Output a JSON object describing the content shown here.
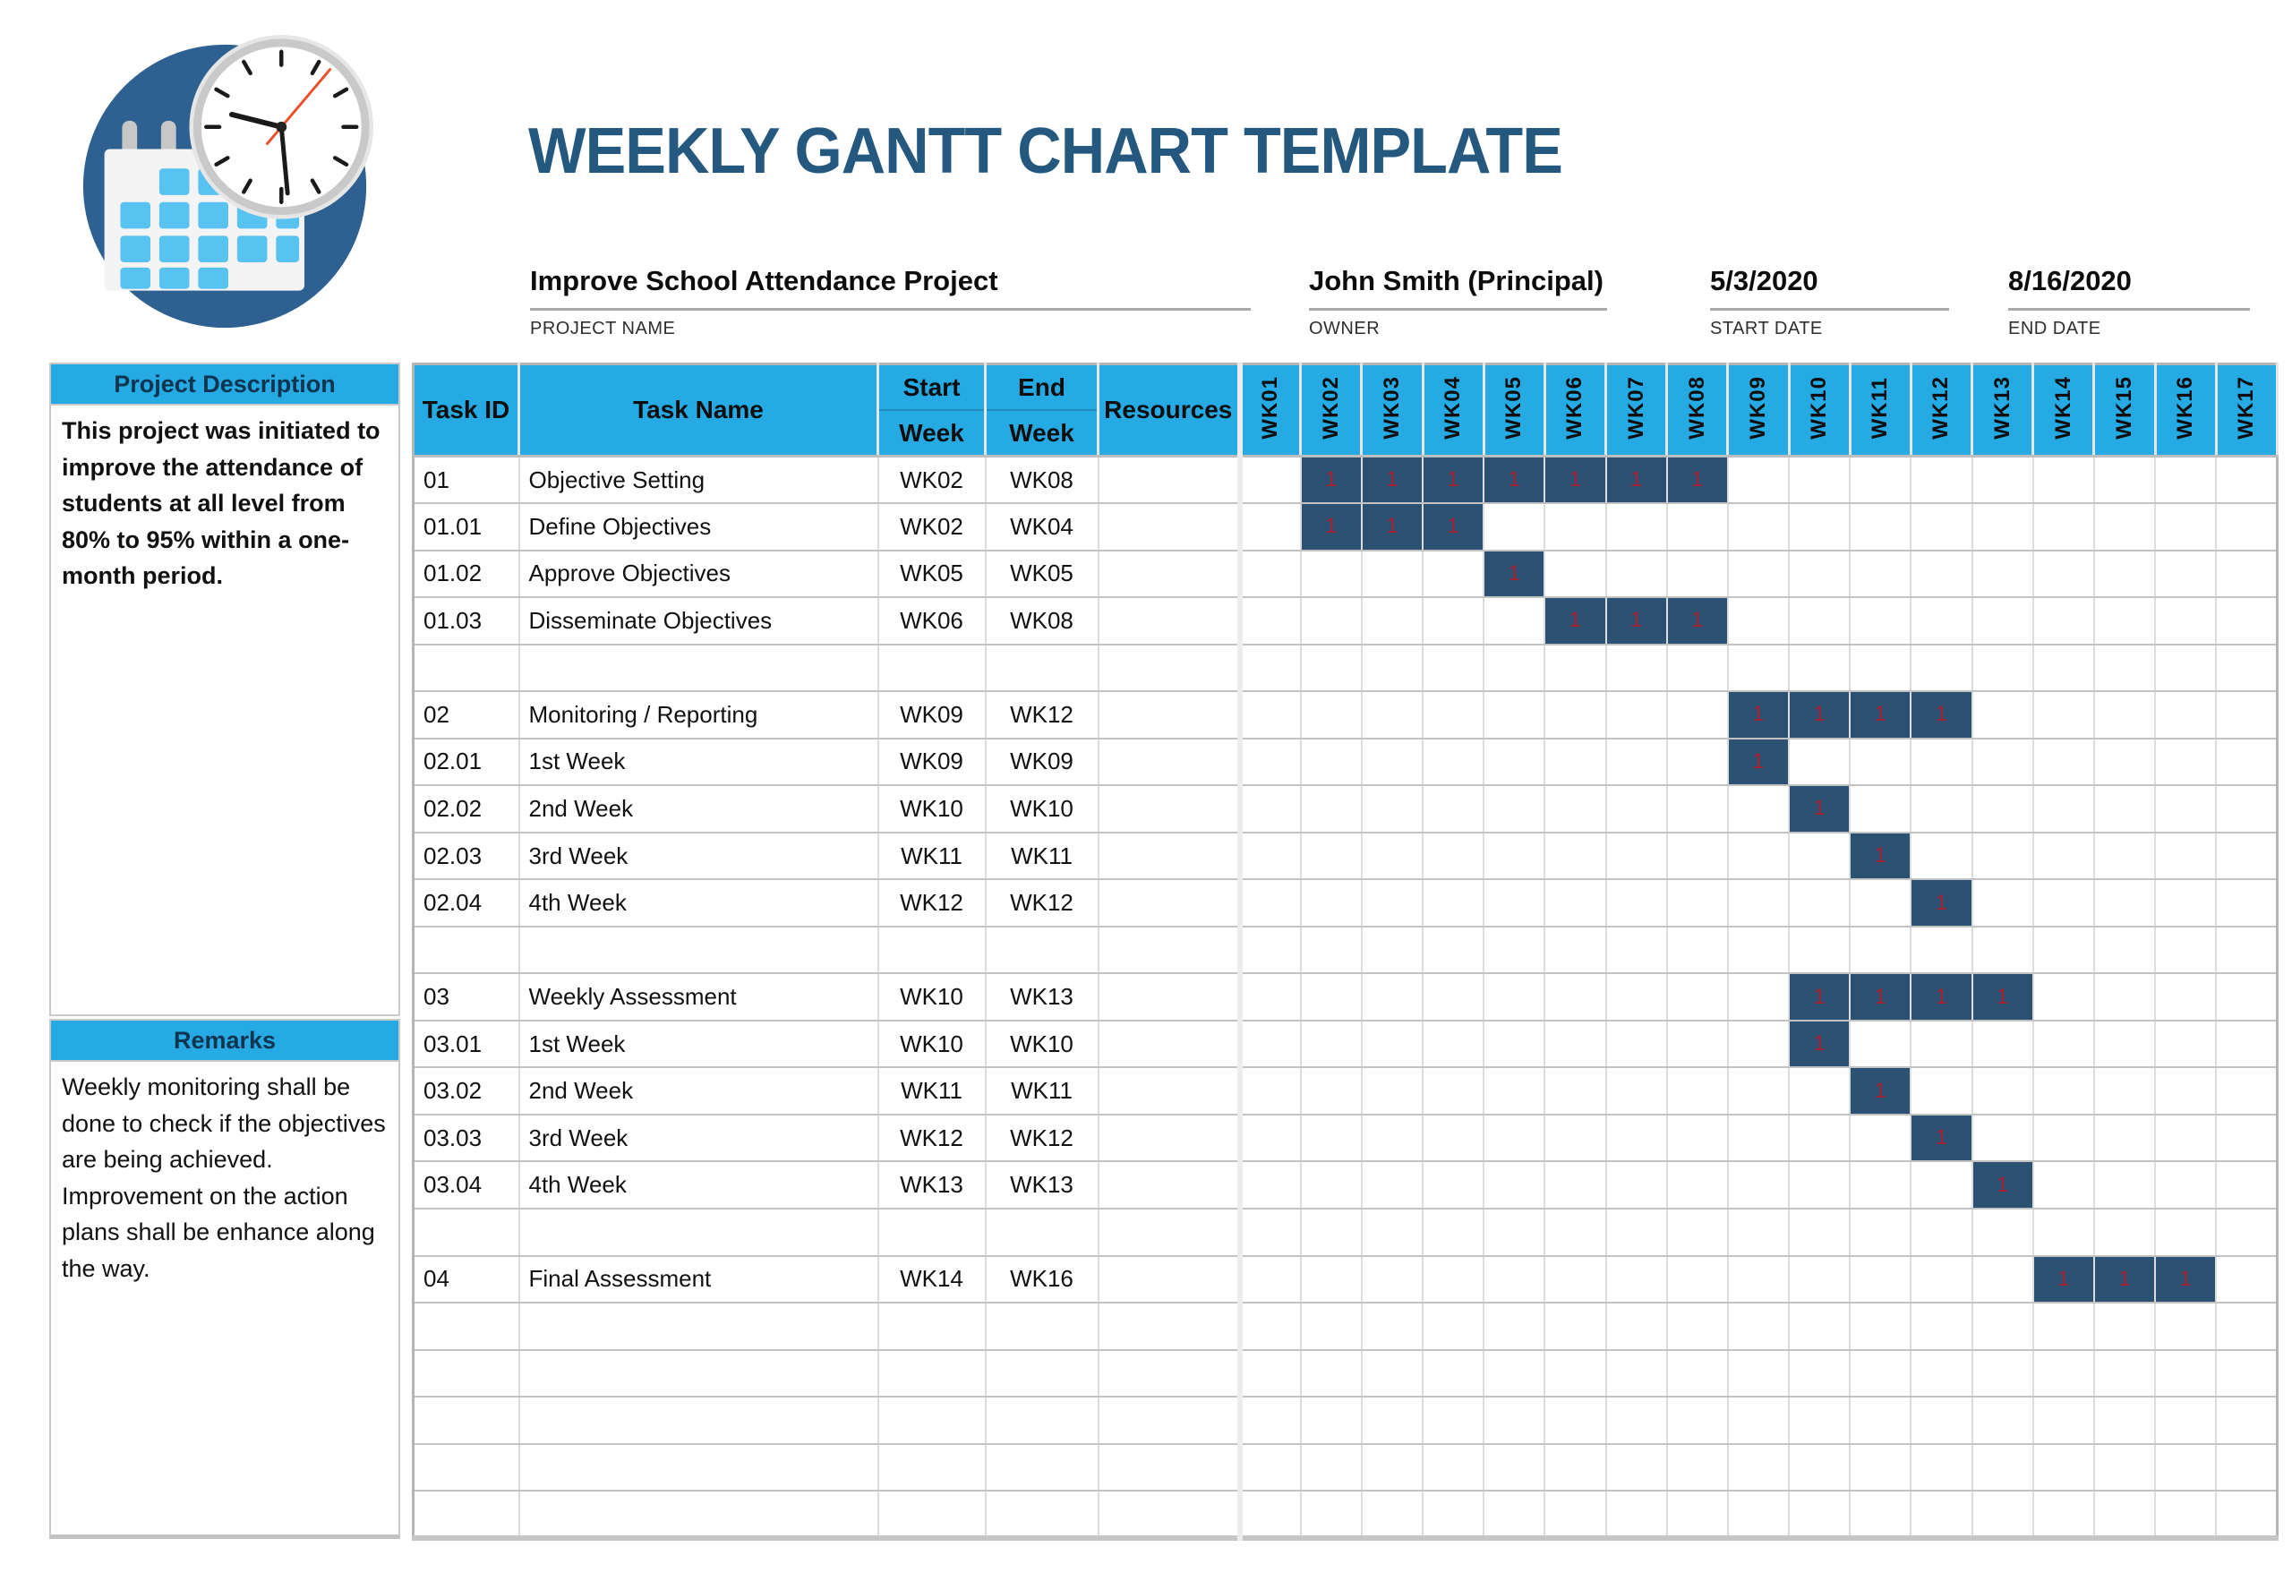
{
  "title": "WEEKLY GANTT CHART TEMPLATE",
  "logo": {
    "name": "calendar-clock-logo"
  },
  "colors": {
    "accent_cyan": "#25AAE3",
    "bar_navy": "#2D5173",
    "bar_value_red": "#A92231",
    "title_blue": "#24587F",
    "logo_blue": "#2E6191"
  },
  "project_info": {
    "project_name": {
      "value": "Improve School Attendance Project",
      "label": "PROJECT NAME"
    },
    "owner": {
      "value": "John Smith (Principal)",
      "label": "OWNER"
    },
    "start_date": {
      "value": "5/3/2020",
      "label": "START DATE"
    },
    "end_date": {
      "value": "8/16/2020",
      "label": "END DATE"
    }
  },
  "sidebar": {
    "description_header": "Project Description",
    "description_text": "This project was initiated to improve the attendance of students at all level from 80% to 95% within a one-month period.",
    "remarks_header": "Remarks",
    "remarks_lines": [
      "Weekly monitoring shall be done to check if the objectives are being achieved.",
      "Improvement on the action plans shall be enhance along the way."
    ]
  },
  "table": {
    "headers": {
      "task_id": "Task ID",
      "task_name": "Task Name",
      "start_top": "Start",
      "start_bottom": "Week",
      "end_top": "End",
      "end_bottom": "Week",
      "resources": "Resources"
    },
    "weeks": [
      "WK01",
      "WK02",
      "WK03",
      "WK04",
      "WK05",
      "WK06",
      "WK07",
      "WK08",
      "WK09",
      "WK10",
      "WK11",
      "WK12",
      "WK13",
      "WK14",
      "WK15",
      "WK16",
      "WK17"
    ],
    "fill_value": "1",
    "rows": [
      {
        "id": "01",
        "name": "Objective Setting",
        "start": "WK02",
        "end": "WK08",
        "bar": [
          2,
          8
        ]
      },
      {
        "id": "01.01",
        "name": "Define Objectives",
        "start": "WK02",
        "end": "WK04",
        "bar": [
          2,
          4
        ]
      },
      {
        "id": "01.02",
        "name": "Approve Objectives",
        "start": "WK05",
        "end": "WK05",
        "bar": [
          5,
          5
        ]
      },
      {
        "id": "01.03",
        "name": "Disseminate Objectives",
        "start": "WK06",
        "end": "WK08",
        "bar": [
          6,
          8
        ]
      },
      {
        "id": "",
        "name": "",
        "start": "",
        "end": "",
        "bar": null
      },
      {
        "id": "02",
        "name": "Monitoring / Reporting",
        "start": "WK09",
        "end": "WK12",
        "bar": [
          9,
          12
        ]
      },
      {
        "id": "02.01",
        "name": "1st Week",
        "start": "WK09",
        "end": "WK09",
        "bar": [
          9,
          9
        ]
      },
      {
        "id": "02.02",
        "name": "2nd Week",
        "start": "WK10",
        "end": "WK10",
        "bar": [
          10,
          10
        ]
      },
      {
        "id": "02.03",
        "name": "3rd Week",
        "start": "WK11",
        "end": "WK11",
        "bar": [
          11,
          11
        ]
      },
      {
        "id": "02.04",
        "name": "4th Week",
        "start": "WK12",
        "end": "WK12",
        "bar": [
          12,
          12
        ]
      },
      {
        "id": "",
        "name": "",
        "start": "",
        "end": "",
        "bar": null
      },
      {
        "id": "03",
        "name": "Weekly Assessment",
        "start": "WK10",
        "end": "WK13",
        "bar": [
          10,
          13
        ]
      },
      {
        "id": "03.01",
        "name": "1st Week",
        "start": "WK10",
        "end": "WK10",
        "bar": [
          10,
          10
        ]
      },
      {
        "id": "03.02",
        "name": "2nd Week",
        "start": "WK11",
        "end": "WK11",
        "bar": [
          11,
          11
        ]
      },
      {
        "id": "03.03",
        "name": "3rd Week",
        "start": "WK12",
        "end": "WK12",
        "bar": [
          12,
          12
        ]
      },
      {
        "id": "03.04",
        "name": "4th Week",
        "start": "WK13",
        "end": "WK13",
        "bar": [
          13,
          13
        ]
      },
      {
        "id": "",
        "name": "",
        "start": "",
        "end": "",
        "bar": null
      },
      {
        "id": "04",
        "name": "Final Assessment",
        "start": "WK14",
        "end": "WK16",
        "bar": [
          14,
          16
        ]
      },
      {
        "id": "",
        "name": "",
        "start": "",
        "end": "",
        "bar": null
      },
      {
        "id": "",
        "name": "",
        "start": "",
        "end": "",
        "bar": null
      },
      {
        "id": "",
        "name": "",
        "start": "",
        "end": "",
        "bar": null
      },
      {
        "id": "",
        "name": "",
        "start": "",
        "end": "",
        "bar": null
      },
      {
        "id": "",
        "name": "",
        "start": "",
        "end": "",
        "bar": null
      }
    ]
  },
  "chart_data": {
    "type": "table",
    "subtype": "gantt",
    "title": "WEEKLY GANTT CHART TEMPLATE",
    "x_categories": [
      "WK01",
      "WK02",
      "WK03",
      "WK04",
      "WK05",
      "WK06",
      "WK07",
      "WK08",
      "WK09",
      "WK10",
      "WK11",
      "WK12",
      "WK13",
      "WK14",
      "WK15",
      "WK16",
      "WK17"
    ],
    "cell_fill_value": 1,
    "tasks": [
      {
        "task_id": "01",
        "task_name": "Objective Setting",
        "start_week": "WK02",
        "end_week": "WK08",
        "weeks_spanned": [
          2,
          8
        ]
      },
      {
        "task_id": "01.01",
        "task_name": "Define Objectives",
        "start_week": "WK02",
        "end_week": "WK04",
        "weeks_spanned": [
          2,
          4
        ]
      },
      {
        "task_id": "01.02",
        "task_name": "Approve Objectives",
        "start_week": "WK05",
        "end_week": "WK05",
        "weeks_spanned": [
          5,
          5
        ]
      },
      {
        "task_id": "01.03",
        "task_name": "Disseminate Objectives",
        "start_week": "WK06",
        "end_week": "WK08",
        "weeks_spanned": [
          6,
          8
        ]
      },
      {
        "task_id": "02",
        "task_name": "Monitoring / Reporting",
        "start_week": "WK09",
        "end_week": "WK12",
        "weeks_spanned": [
          9,
          12
        ]
      },
      {
        "task_id": "02.01",
        "task_name": "1st Week",
        "start_week": "WK09",
        "end_week": "WK09",
        "weeks_spanned": [
          9,
          9
        ]
      },
      {
        "task_id": "02.02",
        "task_name": "2nd Week",
        "start_week": "WK10",
        "end_week": "WK10",
        "weeks_spanned": [
          10,
          10
        ]
      },
      {
        "task_id": "02.03",
        "task_name": "3rd Week",
        "start_week": "WK11",
        "end_week": "WK11",
        "weeks_spanned": [
          11,
          11
        ]
      },
      {
        "task_id": "02.04",
        "task_name": "4th Week",
        "start_week": "WK12",
        "end_week": "WK12",
        "weeks_spanned": [
          12,
          12
        ]
      },
      {
        "task_id": "03",
        "task_name": "Weekly Assessment",
        "start_week": "WK10",
        "end_week": "WK13",
        "weeks_spanned": [
          10,
          13
        ]
      },
      {
        "task_id": "03.01",
        "task_name": "1st Week",
        "start_week": "WK10",
        "end_week": "WK10",
        "weeks_spanned": [
          10,
          10
        ]
      },
      {
        "task_id": "03.02",
        "task_name": "2nd Week",
        "start_week": "WK11",
        "end_week": "WK11",
        "weeks_spanned": [
          11,
          11
        ]
      },
      {
        "task_id": "03.03",
        "task_name": "3rd Week",
        "start_week": "WK12",
        "end_week": "WK12",
        "weeks_spanned": [
          12,
          12
        ]
      },
      {
        "task_id": "03.04",
        "task_name": "4th Week",
        "start_week": "WK13",
        "end_week": "WK13",
        "weeks_spanned": [
          13,
          13
        ]
      },
      {
        "task_id": "04",
        "task_name": "Final Assessment",
        "start_week": "WK14",
        "end_week": "WK16",
        "weeks_spanned": [
          14,
          16
        ]
      }
    ]
  }
}
